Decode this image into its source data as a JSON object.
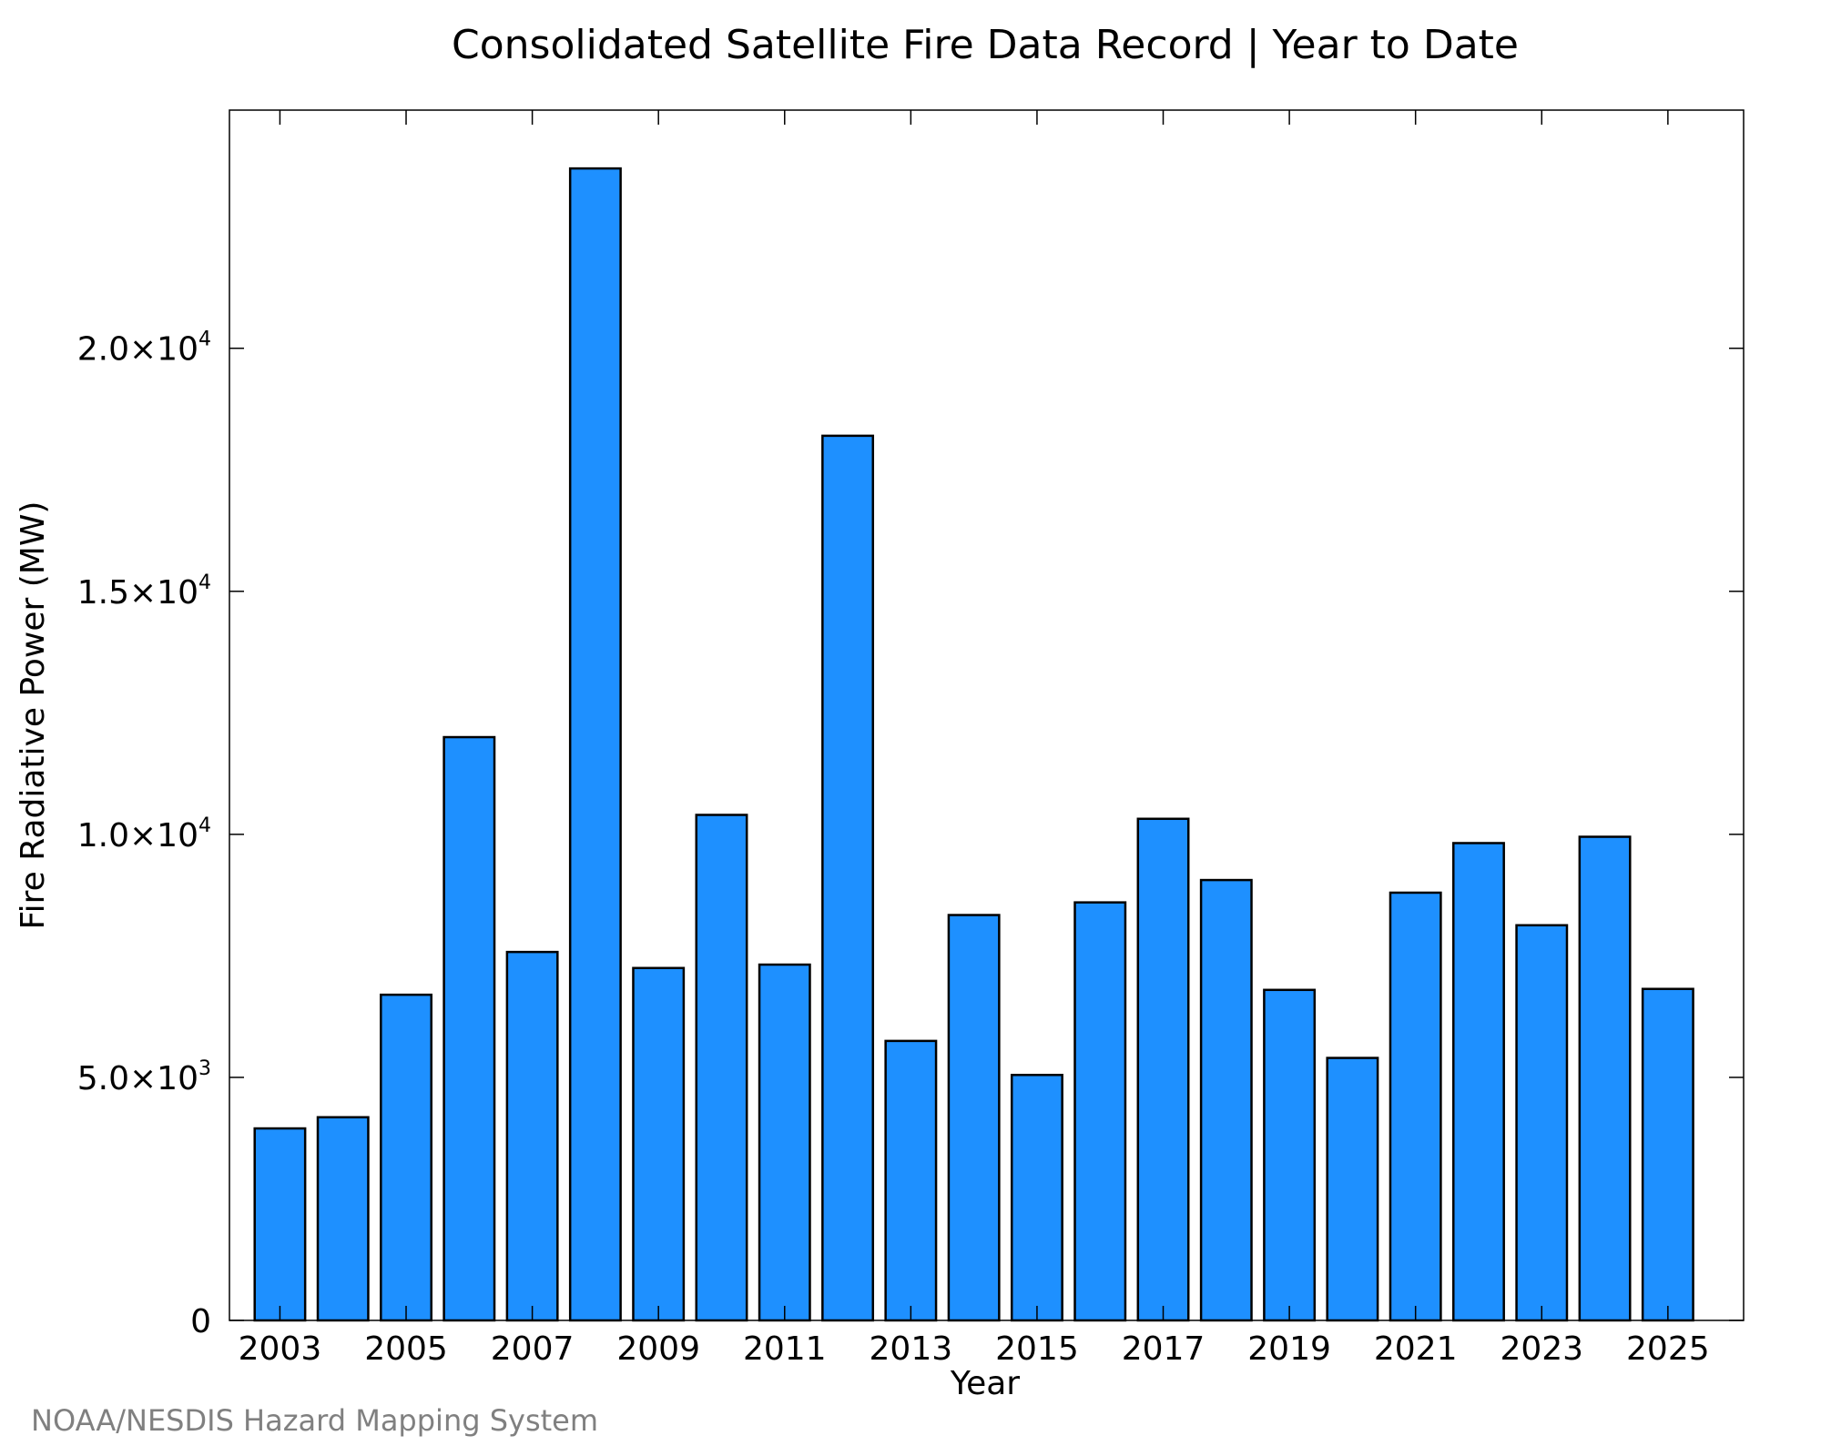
{
  "chart_data": {
    "type": "bar",
    "title": "Consolidated Satellite Fire Data Record | Year to Date",
    "xlabel": "Year",
    "ylabel": "Fire Radiative Power (MW)",
    "ylim": [
      0,
      24900
    ],
    "xlim": [
      2002.2,
      2026.2
    ],
    "categories": [
      2003,
      2004,
      2005,
      2006,
      2007,
      2008,
      2009,
      2010,
      2011,
      2012,
      2013,
      2014,
      2015,
      2016,
      2017,
      2018,
      2019,
      2020,
      2021,
      2022,
      2023,
      2024,
      2025
    ],
    "values": [
      3950,
      4180,
      6700,
      12000,
      7580,
      23700,
      7250,
      10400,
      7320,
      18200,
      5750,
      8340,
      5050,
      8600,
      10320,
      9060,
      6800,
      5400,
      8800,
      9820,
      8130,
      9950,
      6820
    ],
    "x_ticks": [
      "2003",
      "2005",
      "2007",
      "2009",
      "2011",
      "2013",
      "2015",
      "2017",
      "2019",
      "2021",
      "2023",
      "2025"
    ],
    "x_tick_values": [
      2003,
      2005,
      2007,
      2009,
      2011,
      2013,
      2015,
      2017,
      2019,
      2021,
      2023,
      2025
    ],
    "y_ticks": [
      {
        "value": 0,
        "mantissa": "0",
        "exponent": ""
      },
      {
        "value": 5000,
        "mantissa": "5.0×10",
        "exponent": "3"
      },
      {
        "value": 10000,
        "mantissa": "1.0×10",
        "exponent": "4"
      },
      {
        "value": 15000,
        "mantissa": "1.5×10",
        "exponent": "4"
      },
      {
        "value": 20000,
        "mantissa": "2.0×10",
        "exponent": "4"
      }
    ],
    "bar_color": "#1e90ff",
    "edge_color": "#000000",
    "grid": false,
    "legend": "none",
    "credit": "NOAA/NESDIS Hazard Mapping System"
  }
}
